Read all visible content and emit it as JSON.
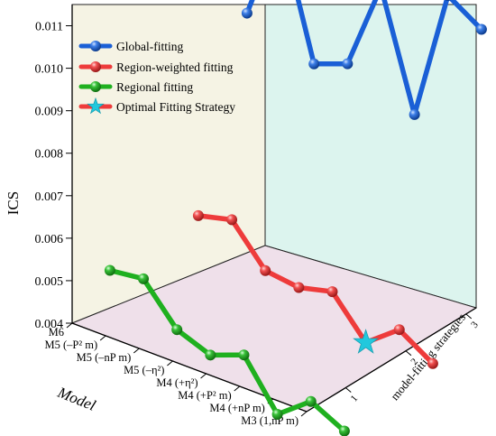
{
  "chart_data": {
    "type": "line",
    "ylabel": "ICS",
    "xlabel": "Model",
    "zlabel": "model-fitting strategies",
    "ylim": [
      0.004,
      0.0115
    ],
    "yticks": [
      "0.004",
      "0.005",
      "0.006",
      "0.007",
      "0.008",
      "0.009",
      "0.010",
      "0.011"
    ],
    "model_ticks": [
      "M6",
      "M5 (–P² m)",
      "M5 (–nP m)",
      "M5 (–η²)",
      "M4 (+η²)",
      "M4 (+P² m)",
      "M4 (+nP m)",
      "M3 (1,nP m)"
    ],
    "strategy_ticks": [
      "1",
      "2",
      "3"
    ],
    "series": [
      {
        "name": "Global-fitting",
        "color": "#1a5fd6",
        "strategy": 3,
        "values": [
          0.009,
          0.0113,
          0.0084,
          0.0087,
          0.0108,
          0.0081,
          0.0112,
          0.0107
        ]
      },
      {
        "name": "Region-weighted fitting",
        "color": "#ee3b3b",
        "strategy": 2,
        "values": [
          0.005,
          0.0052,
          0.0043,
          0.0042,
          0.0044,
          0.0035,
          0.0041,
          0.0036
        ]
      },
      {
        "name": "Regional fitting",
        "color": "#1fb01f",
        "strategy": 1,
        "values": [
          0.0049,
          0.005,
          0.0041,
          0.0038,
          0.0041,
          0.003,
          0.0036,
          0.0032
        ]
      }
    ],
    "optimal": {
      "name": "Optimal Fitting Strategy",
      "color": "#22c8dd",
      "strategy": 2,
      "model_index": 5,
      "value": 0.0035
    },
    "legend_position": "top-left"
  }
}
